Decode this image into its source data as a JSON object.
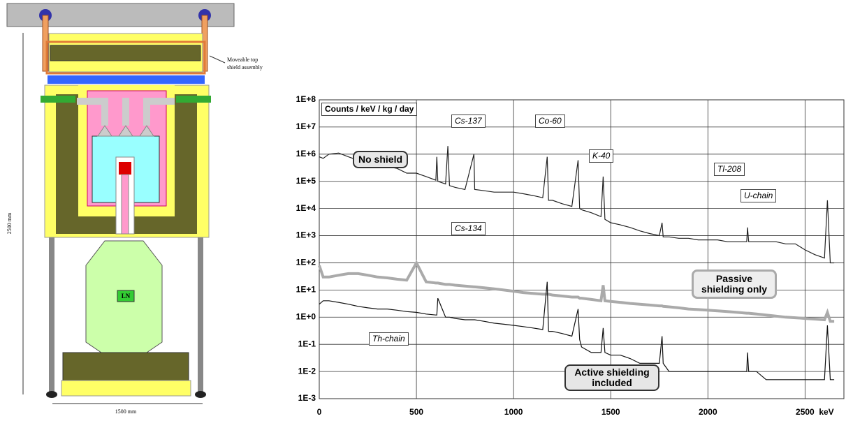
{
  "diagram": {
    "top_label": [
      "Moveable top",
      "shield assembly"
    ],
    "height_label": "2500 mm",
    "width_label": "1500 mm",
    "dewar_label": "LN"
  },
  "chart_data": {
    "type": "line",
    "log_y": true,
    "grid": true,
    "ylabel": "Counts / keV / kg / day",
    "xlabel": "keV",
    "xlim": [
      0,
      2700
    ],
    "xticks": [
      0,
      500,
      1000,
      1500,
      2000,
      2500
    ],
    "ylim": [
      0.001,
      100000000
    ],
    "yticks": [
      {
        "value": 0.001,
        "label": "1E-3"
      },
      {
        "value": 0.01,
        "label": "1E-2"
      },
      {
        "value": 0.1,
        "label": "1E-1"
      },
      {
        "value": 1,
        "label": "1E+0"
      },
      {
        "value": 10,
        "label": "1E+1"
      },
      {
        "value": 100,
        "label": "1E+2"
      },
      {
        "value": 1000,
        "label": "1E+3"
      },
      {
        "value": 10000,
        "label": "1E+4"
      },
      {
        "value": 100000,
        "label": "1E+5"
      },
      {
        "value": 1000000,
        "label": "1E+6"
      },
      {
        "value": 10000000,
        "label": "1E+7"
      },
      {
        "value": 100000000,
        "label": "1E+8"
      }
    ],
    "x": [
      0,
      20,
      50,
      100,
      150,
      200,
      250,
      300,
      350,
      400,
      450,
      500,
      550,
      600,
      605,
      610,
      650,
      662,
      670,
      700,
      750,
      796,
      800,
      850,
      900,
      950,
      1000,
      1050,
      1100,
      1150,
      1173,
      1180,
      1200,
      1250,
      1300,
      1332,
      1340,
      1350,
      1400,
      1450,
      1461,
      1470,
      1500,
      1550,
      1600,
      1650,
      1700,
      1750,
      1764,
      1770,
      1800,
      1850,
      1900,
      1950,
      2000,
      2050,
      2100,
      2150,
      2200,
      2204,
      2210,
      2250,
      2300,
      2350,
      2400,
      2450,
      2500,
      2550,
      2600,
      2615,
      2630,
      2650
    ],
    "series": [
      {
        "color": "#222222",
        "values": [
          800000,
          700000,
          1000000,
          1100000,
          800000,
          600000,
          500000,
          400000,
          350000,
          300000,
          200000,
          200000,
          150000,
          110000,
          800000,
          100000,
          80000,
          2000000,
          70000,
          60000,
          50000,
          1000000,
          50000,
          45000,
          40000,
          40000,
          40000,
          35000,
          30000,
          25000,
          800000,
          20000,
          20000,
          15000,
          12000,
          600000,
          10000,
          9000,
          7000,
          5000,
          150000,
          4000,
          3000,
          2500,
          2000,
          1500,
          1200,
          1000,
          3000,
          900,
          900,
          800,
          800,
          700,
          700,
          700,
          600,
          600,
          600,
          2000,
          600,
          600,
          600,
          600,
          500,
          500,
          300,
          200,
          150,
          20000,
          100,
          100
        ]
      },
      {
        "color": "#aaaaaa",
        "values": [
          80,
          30,
          30,
          35,
          40,
          40,
          35,
          30,
          28,
          25,
          23,
          100,
          20,
          18,
          18,
          18,
          16,
          16,
          16,
          15,
          14,
          13,
          13,
          12,
          11,
          10,
          9,
          8,
          7.5,
          7,
          7,
          7,
          6.5,
          6,
          5.5,
          5.5,
          5,
          5,
          4.5,
          4,
          15,
          4,
          3.8,
          3.5,
          3.2,
          3,
          2.8,
          2.6,
          2.6,
          2.5,
          2.4,
          2.2,
          2,
          1.9,
          1.8,
          1.7,
          1.6,
          1.5,
          1.4,
          1.4,
          1.4,
          1.3,
          1.2,
          1.1,
          1,
          0.95,
          0.9,
          0.85,
          0.8,
          1.5,
          0.7,
          0.7
        ]
      },
      {
        "color": "#111111",
        "values": [
          3,
          4,
          4,
          3.5,
          3,
          2.5,
          2.2,
          2,
          2,
          1.8,
          1.6,
          1.5,
          1.3,
          1.2,
          1.2,
          5,
          1,
          1,
          1,
          0.9,
          0.8,
          0.8,
          0.8,
          0.7,
          0.6,
          0.55,
          0.5,
          0.45,
          0.4,
          0.35,
          20,
          0.3,
          0.3,
          0.25,
          0.2,
          2,
          0.15,
          0.08,
          0.05,
          0.05,
          0.4,
          0.05,
          0.04,
          0.04,
          0.03,
          0.02,
          0.02,
          0.02,
          0.2,
          0.02,
          0.01,
          0.01,
          0.01,
          0.01,
          0.01,
          0.01,
          0.01,
          0.01,
          0.01,
          0.05,
          0.01,
          0.01,
          0.005,
          0.005,
          0.005,
          0.005,
          0.005,
          0.005,
          0.005,
          0.5,
          0.005,
          0.005
        ]
      }
    ],
    "annotations": [
      "No shield",
      "Passive shielding only",
      "Active shielding included",
      "Cs-137",
      "Co-60",
      "K-40",
      "Tl-208",
      "U-chain",
      "Cs-134",
      "Th-chain"
    ]
  }
}
